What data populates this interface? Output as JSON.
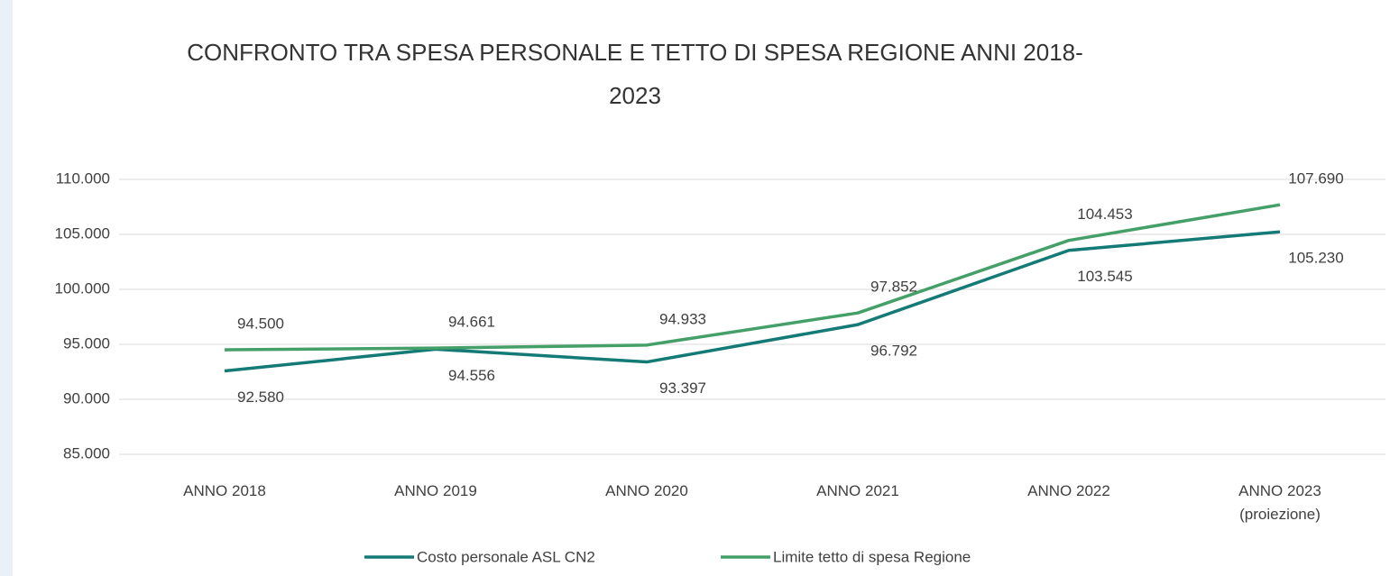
{
  "chart_data": {
    "type": "line",
    "title": "CONFRONTO TRA SPESA PERSONALE  E TETTO DI SPESA REGIONE ANNI 2018-\n2023",
    "categories": [
      "ANNO 2018",
      "ANNO 2019",
      "ANNO 2020",
      "ANNO 2021",
      "ANNO 2022",
      "ANNO 2023\n(proiezione)"
    ],
    "series": [
      {
        "name": "Costo personale ASL CN2",
        "color": "#137a76",
        "values": [
          92580,
          94556,
          93397,
          96792,
          103545,
          105230
        ],
        "value_labels": [
          "92.580",
          "94.556",
          "93.397",
          "96.792",
          "103.545",
          "105.230"
        ]
      },
      {
        "name": "Limite tetto di spesa Regione",
        "color": "#44a068",
        "values": [
          94500,
          94661,
          94933,
          97852,
          104453,
          107690
        ],
        "value_labels": [
          "94.500",
          "94.661",
          "94.933",
          "97.852",
          "104.453",
          "107.690"
        ]
      }
    ],
    "ylim": [
      85000,
      110000
    ],
    "yticks": [
      {
        "value": 85000,
        "label": "85.000"
      },
      {
        "value": 90000,
        "label": "90.000"
      },
      {
        "value": 95000,
        "label": "95.000"
      },
      {
        "value": 100000,
        "label": "100.000"
      },
      {
        "value": 105000,
        "label": "105.000"
      },
      {
        "value": 110000,
        "label": "110.000"
      }
    ],
    "grid": true,
    "legend": "bottom"
  }
}
